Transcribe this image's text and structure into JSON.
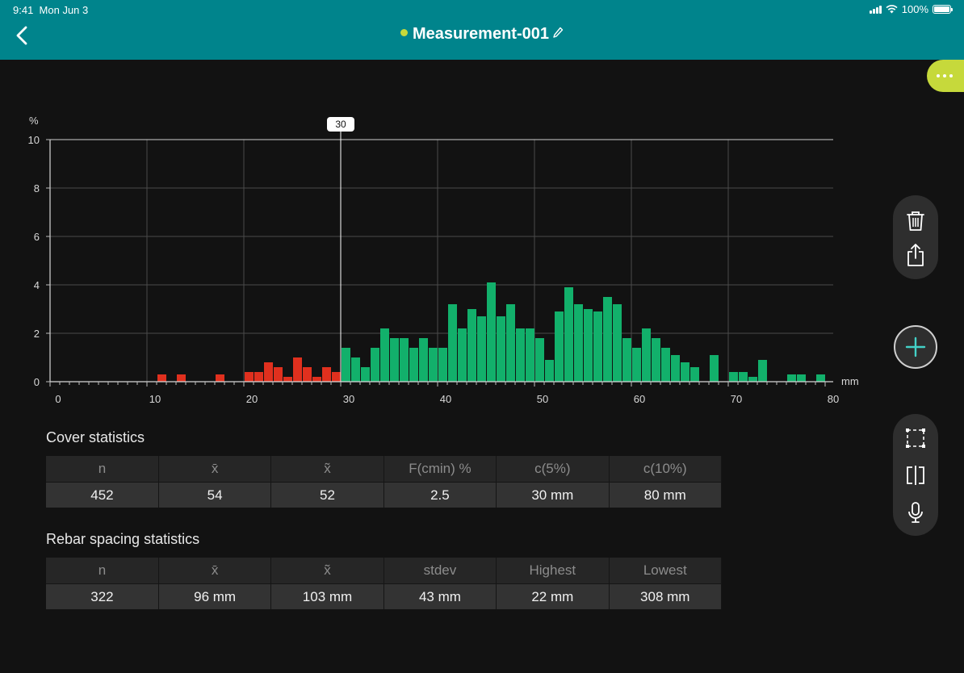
{
  "status_bar": {
    "time": "9:41",
    "date": "Mon Jun 3",
    "battery": "100%"
  },
  "header": {
    "title": "Measurement-001",
    "status_color": "#c6d93b"
  },
  "colors": {
    "header_bg": "#00848c",
    "accent": "#c6d93b",
    "below_limit": "#e0301e",
    "above_limit": "#12b06b"
  },
  "icons": {
    "back": "chevron-left-icon",
    "edit": "pencil-icon",
    "more": "ellipsis-icon",
    "delete": "trash-icon",
    "share": "share-icon",
    "add": "plus-icon",
    "select": "selection-icon",
    "split": "split-icon",
    "voice": "microphone-icon"
  },
  "chart_data": {
    "type": "bar",
    "ylabel": "%",
    "xlabel": "mm",
    "ylim": [
      0,
      10
    ],
    "xlim": [
      0,
      80
    ],
    "bin_width": 1,
    "marker": {
      "x": 30,
      "label": "30"
    },
    "grid": true,
    "xticks": [
      "0",
      "10",
      "20",
      "30",
      "40",
      "50",
      "60",
      "70",
      "80"
    ],
    "yticks": [
      "0",
      "2",
      "4",
      "6",
      "8",
      "10"
    ],
    "series": [
      {
        "x": [
          11,
          13,
          17,
          20,
          21,
          22,
          23,
          24,
          25,
          26,
          27,
          28,
          29
        ],
        "values": [
          0.3,
          0.3,
          0.3,
          0.4,
          0.4,
          0.8,
          0.6,
          0.2,
          1.0,
          0.6,
          0.2,
          0.6,
          0.4
        ]
      },
      {
        "x": [
          30,
          31,
          32,
          33,
          34,
          35,
          36,
          37,
          38,
          39,
          40,
          41,
          42,
          43,
          44,
          45,
          46,
          47,
          48,
          49,
          50,
          51,
          52,
          53,
          54,
          55,
          56,
          57,
          58,
          59,
          60,
          61,
          62,
          63,
          64,
          65,
          66,
          68,
          70,
          71,
          72,
          73,
          76,
          77,
          79
        ],
        "values": [
          1.4,
          1.0,
          0.6,
          1.4,
          2.2,
          1.8,
          1.8,
          1.4,
          1.8,
          1.4,
          1.4,
          3.2,
          2.2,
          3.0,
          2.7,
          4.1,
          2.7,
          3.2,
          2.2,
          2.2,
          1.8,
          0.9,
          2.9,
          3.9,
          3.2,
          3.0,
          2.9,
          3.5,
          3.2,
          1.8,
          1.4,
          2.2,
          1.8,
          1.4,
          1.1,
          0.8,
          0.6,
          1.1,
          0.4,
          0.4,
          0.2,
          0.9,
          0.3,
          0.3,
          0.3
        ]
      }
    ]
  },
  "cover_stats": {
    "title": "Cover statistics",
    "headers": [
      "n",
      "x̄",
      "x̃",
      "F(cmin) %",
      "c(5%)",
      "c(10%)"
    ],
    "values": [
      "452",
      "54",
      "52",
      "2.5",
      "30 mm",
      "80 mm"
    ]
  },
  "spacing_stats": {
    "title": "Rebar spacing statistics",
    "headers": [
      "n",
      "x̄",
      "x̃",
      "stdev",
      "Highest",
      "Lowest"
    ],
    "values": [
      "322",
      "96 mm",
      "103 mm",
      "43 mm",
      "22 mm",
      "308 mm"
    ]
  }
}
